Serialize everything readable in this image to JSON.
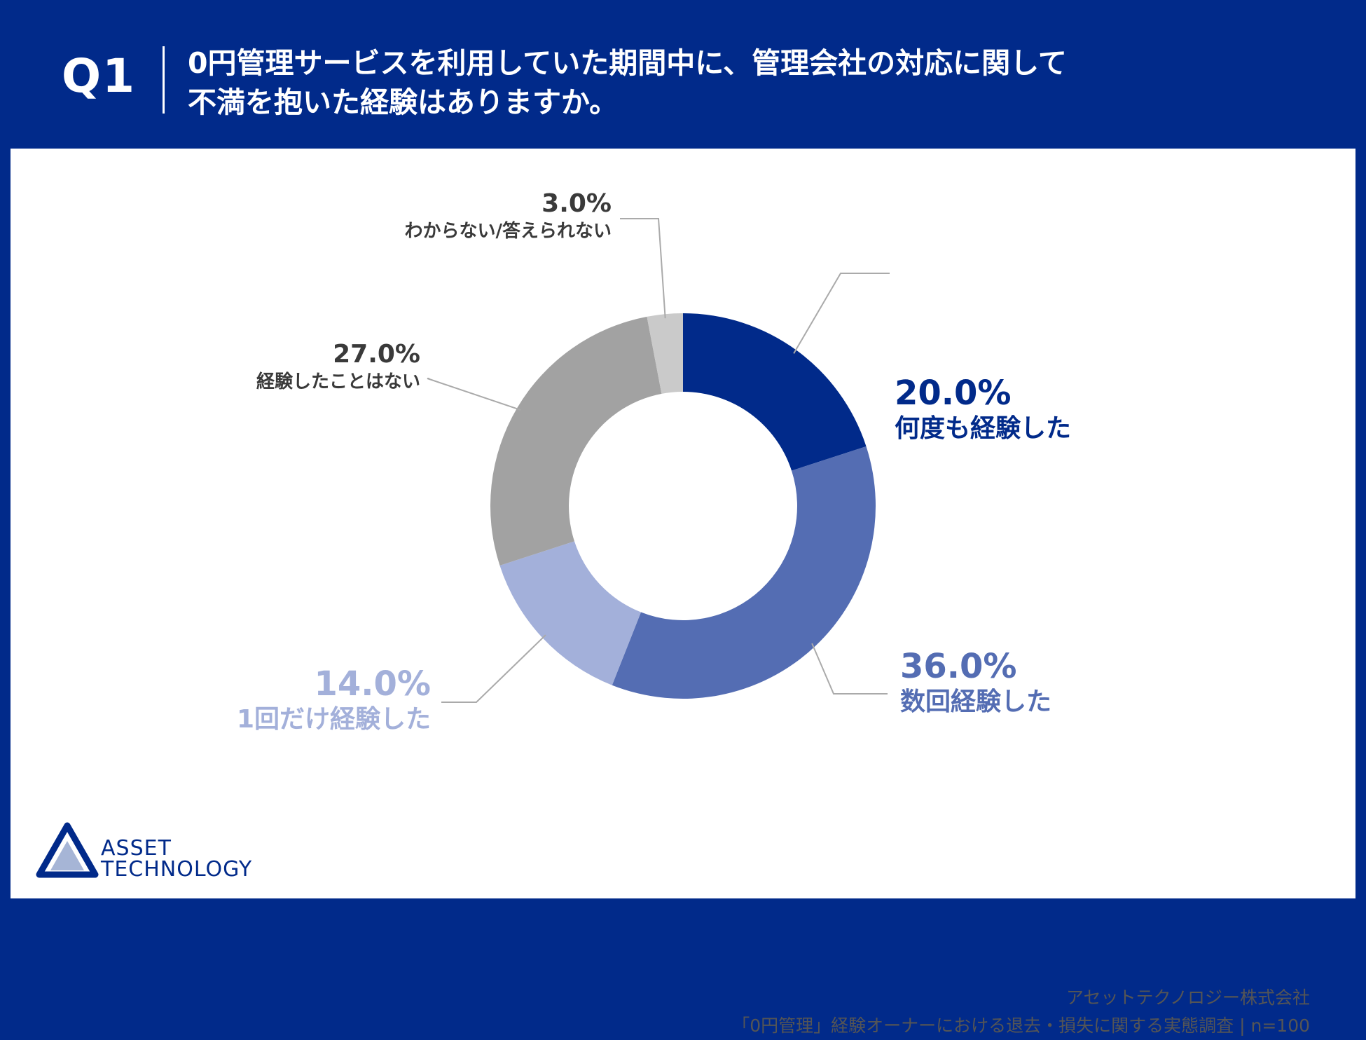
{
  "header": {
    "qnum": "Q1",
    "question_line1": "0円管理サービスを利用していた期間中に、管理会社の対応に関して",
    "question_line2": "不満を抱いた経験はありますか。"
  },
  "chart_data": {
    "type": "pie",
    "variant": "donut",
    "title": "0円管理サービスを利用していた期間中に、管理会社の対応に関して不満を抱いた経験はありますか。",
    "slices": [
      {
        "label": "何度も経験した",
        "value": 20.0,
        "display": "20.0%",
        "color": "#012a8a"
      },
      {
        "label": "数回経験した",
        "value": 36.0,
        "display": "36.0%",
        "color": "#546db3"
      },
      {
        "label": "1回だけ経験した",
        "value": 14.0,
        "display": "14.0%",
        "color": "#a3b0da"
      },
      {
        "label": "経験したことはない",
        "value": 27.0,
        "display": "27.0%",
        "color": "#a2a2a2"
      },
      {
        "label": "わからない/答えられない",
        "value": 3.0,
        "display": "3.0%",
        "color": "#cacaca"
      }
    ]
  },
  "logo": {
    "line1": "ASSET",
    "line2": "TECHNOLOGY"
  },
  "footer": {
    "company": "アセットテクノロジー株式会社",
    "survey": "「0円管理」経験オーナーにおける退去・損失に関する実態調査 | n=100"
  },
  "colors": {
    "brand": "#012a8a",
    "leader": "#aaaaaa",
    "dark_label": "#3a3a3a"
  }
}
